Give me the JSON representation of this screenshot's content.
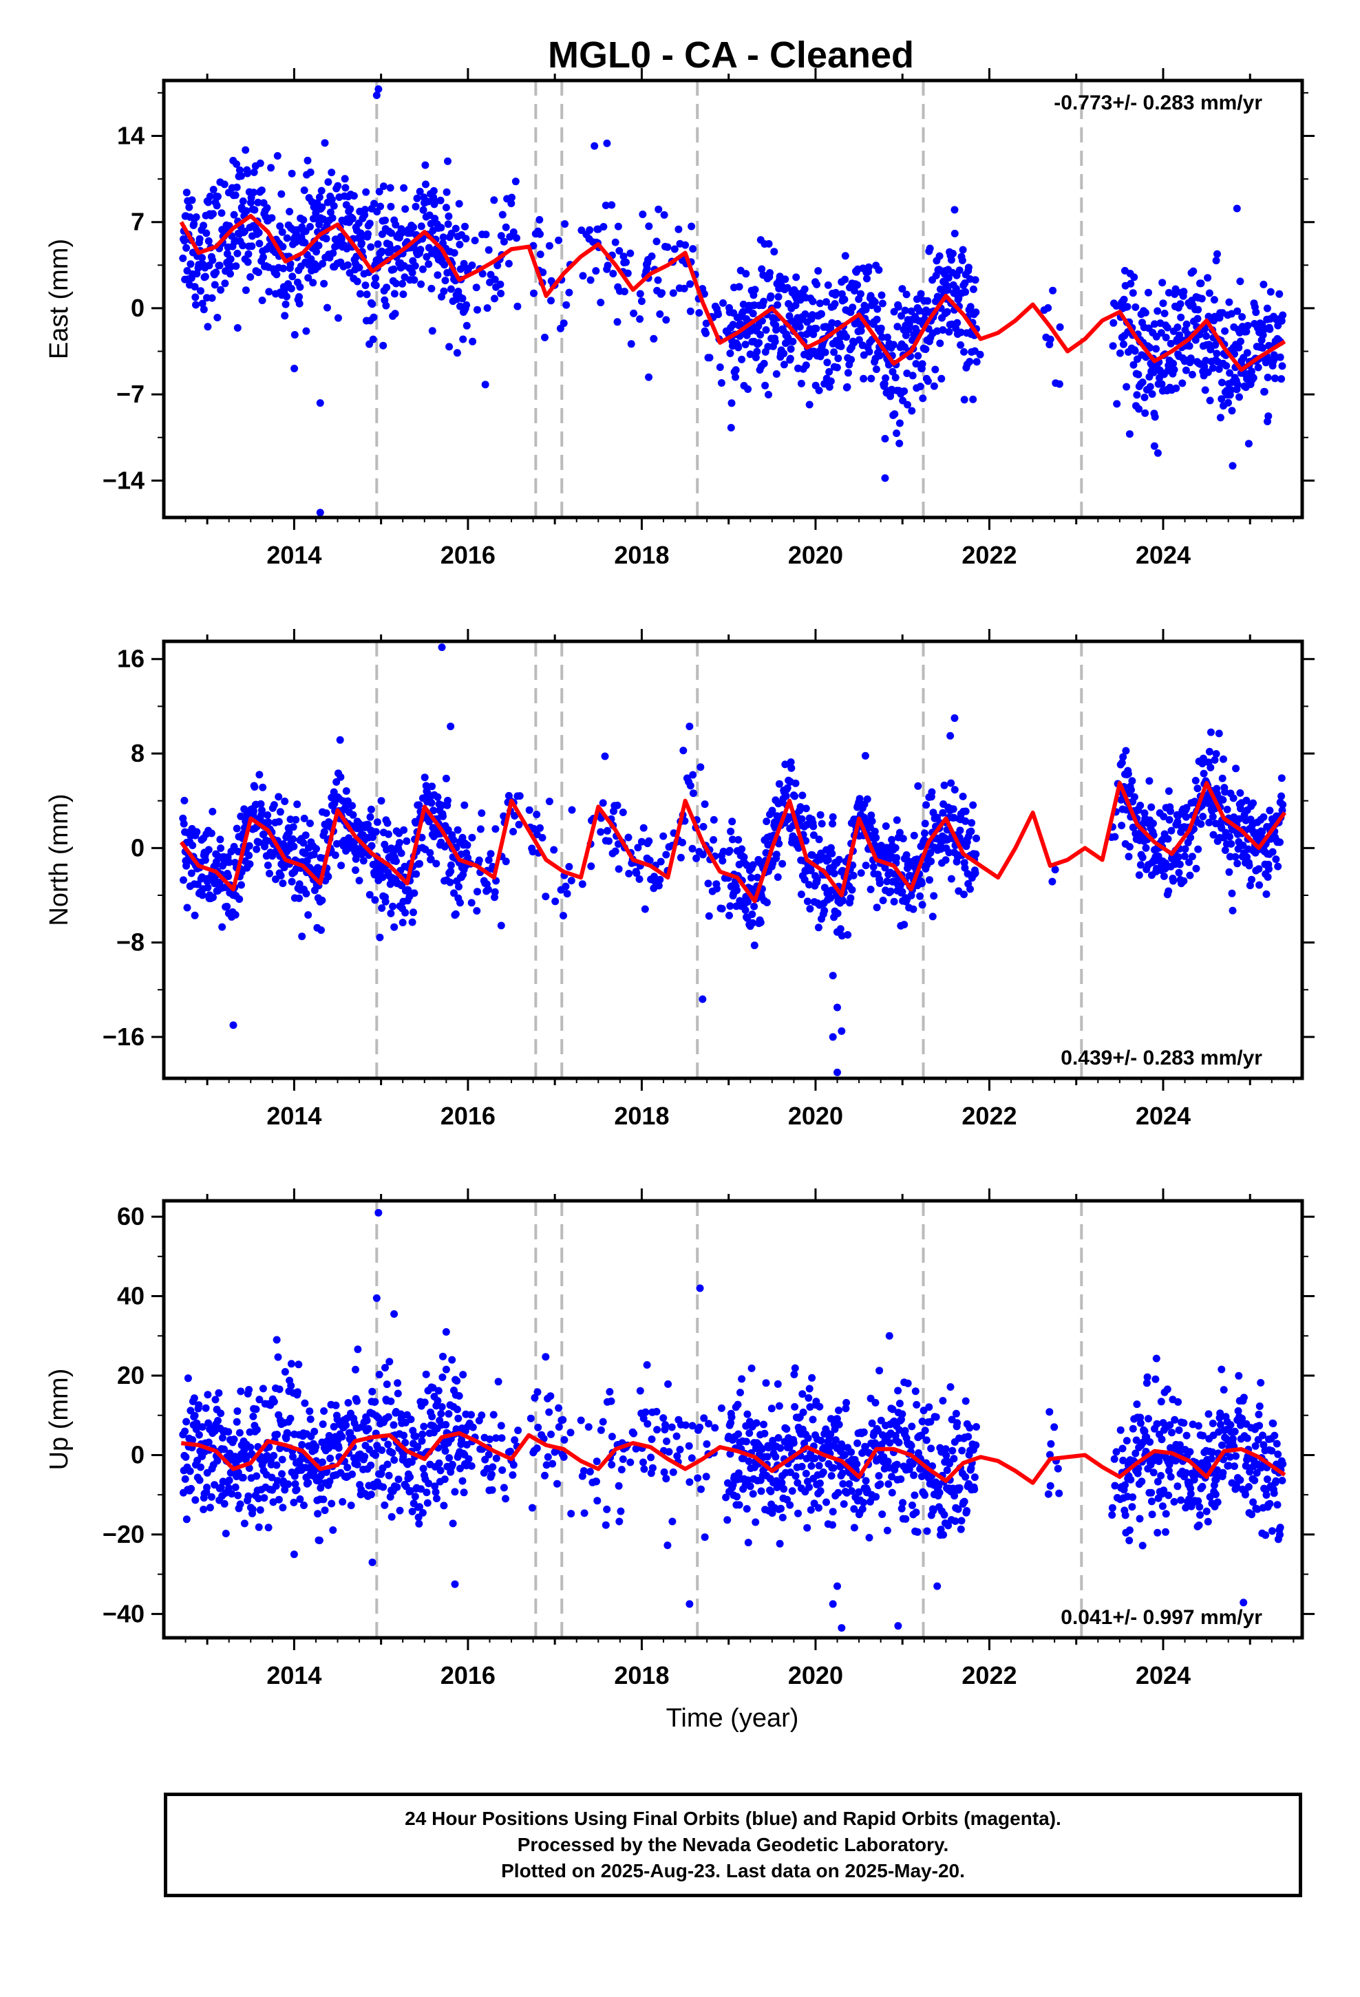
{
  "title": "MGL0  - CA - Cleaned",
  "xlabel": "Time (year)",
  "footer": {
    "line1": "24 Hour Positions Using Final Orbits (blue) and Rapid Orbits (magenta).",
    "line2": "Processed by the Nevada Geodetic Laboratory.",
    "line3": "Plotted on 2025-Aug-23. Last data on 2025-May-20."
  },
  "colors": {
    "points": "#0000ff",
    "fit": "#ff0000",
    "events": "#bbbbbb",
    "axis": "#000000"
  },
  "chart_data": [
    {
      "type": "scatter",
      "name": "east",
      "ylabel": "East (mm)",
      "xlim": [
        2012.5,
        2025.6
      ],
      "ylim": [
        -17,
        18.5
      ],
      "xticks": [
        2014,
        2016,
        2018,
        2020,
        2022,
        2024
      ],
      "yticks": [
        -14,
        -7,
        0,
        7,
        14
      ],
      "ytick_labels": [
        "−14",
        "−7",
        "0",
        "7",
        "14"
      ],
      "rate_label": "-0.773+/- 0.283 mm/yr",
      "rate_position": "top-right",
      "event_lines": [
        2014.95,
        2016.78,
        2017.08,
        2018.64,
        2021.24,
        2023.06
      ],
      "data_gaps": [
        [
          2016.6,
          2016.7
        ],
        [
          2017.2,
          2017.3
        ],
        [
          2021.9,
          2022.6
        ],
        [
          2022.85,
          2023.4
        ]
      ],
      "scatter_noise": 2.6,
      "outliers": [
        {
          "x": 2014.95,
          "y": 17.3
        },
        {
          "x": 2014.97,
          "y": 17.8
        },
        {
          "x": 2013.35,
          "y": -1.6
        },
        {
          "x": 2014.3,
          "y": -7.7
        },
        {
          "x": 2014.3,
          "y": -16.6
        },
        {
          "x": 2016.2,
          "y": -6.2
        },
        {
          "x": 2017.6,
          "y": 13.4
        },
        {
          "x": 2018.08,
          "y": -5.6
        },
        {
          "x": 2016.55,
          "y": 10.3
        },
        {
          "x": 2020.8,
          "y": -13.8
        },
        {
          "x": 2020.8,
          "y": -10.6
        },
        {
          "x": 2021.6,
          "y": 8.0
        },
        {
          "x": 2023.9,
          "y": -11.2
        },
        {
          "x": 2024.8,
          "y": -12.8
        },
        {
          "x": 2024.85,
          "y": 8.1
        },
        {
          "x": 2025.2,
          "y": -9.2
        }
      ],
      "fit": {
        "x": [
          2012.7,
          2012.9,
          2013.1,
          2013.3,
          2013.5,
          2013.7,
          2013.9,
          2014.1,
          2014.3,
          2014.5,
          2014.7,
          2014.9,
          2015.1,
          2015.3,
          2015.5,
          2015.7,
          2015.9,
          2016.1,
          2016.3,
          2016.5,
          2016.7,
          2016.9,
          2017.1,
          2017.3,
          2017.5,
          2017.7,
          2017.9,
          2018.1,
          2018.3,
          2018.5,
          2018.7,
          2018.9,
          2019.1,
          2019.3,
          2019.5,
          2019.7,
          2019.9,
          2020.1,
          2020.3,
          2020.5,
          2020.7,
          2020.9,
          2021.1,
          2021.3,
          2021.5,
          2021.7,
          2021.9,
          2022.1,
          2022.3,
          2022.5,
          2022.7,
          2022.9,
          2023.1,
          2023.3,
          2023.5,
          2023.7,
          2023.9,
          2024.1,
          2024.3,
          2024.5,
          2024.7,
          2024.9,
          2025.1,
          2025.4
        ],
        "y": [
          7.0,
          4.5,
          5.0,
          6.5,
          7.5,
          6.2,
          3.8,
          4.5,
          6.0,
          6.8,
          5.0,
          3.0,
          4.0,
          5.0,
          6.2,
          4.8,
          2.3,
          3.0,
          3.8,
          4.8,
          5.0,
          1.0,
          2.8,
          4.2,
          5.2,
          3.5,
          1.5,
          2.8,
          3.5,
          4.5,
          0.5,
          -2.8,
          -2.0,
          -1.0,
          0.0,
          -1.5,
          -3.2,
          -2.5,
          -1.5,
          -0.5,
          -2.5,
          -4.5,
          -3.5,
          -1.0,
          1.0,
          -0.5,
          -2.5,
          -2.0,
          -1.0,
          0.3,
          -1.5,
          -3.5,
          -2.5,
          -1.0,
          -0.3,
          -2.5,
          -4.3,
          -3.5,
          -2.5,
          -1.0,
          -3.2,
          -5.0,
          -4.0,
          -2.7
        ]
      }
    },
    {
      "type": "scatter",
      "name": "north",
      "ylabel": "North (mm)",
      "xlim": [
        2012.5,
        2025.6
      ],
      "ylim": [
        -19.5,
        17.5
      ],
      "xticks": [
        2014,
        2016,
        2018,
        2020,
        2022,
        2024
      ],
      "yticks": [
        -16,
        -8,
        0,
        8,
        16
      ],
      "ytick_labels": [
        "−16",
        "−8",
        "0",
        "8",
        "16"
      ],
      "rate_label": "0.439+/- 0.283 mm/yr",
      "rate_position": "bottom-right",
      "event_lines": [
        2014.95,
        2016.78,
        2017.08,
        2018.64,
        2021.24,
        2023.06
      ],
      "data_gaps": [
        [
          2016.6,
          2016.7
        ],
        [
          2017.2,
          2017.3
        ],
        [
          2021.9,
          2022.6
        ],
        [
          2022.85,
          2023.4
        ]
      ],
      "scatter_noise": 2.0,
      "outliers": [
        {
          "x": 2013.3,
          "y": -15.0
        },
        {
          "x": 2015.7,
          "y": 17.0
        },
        {
          "x": 2018.55,
          "y": 10.3
        },
        {
          "x": 2018.7,
          "y": -12.8
        },
        {
          "x": 2020.2,
          "y": -10.8
        },
        {
          "x": 2020.25,
          "y": -13.5
        },
        {
          "x": 2020.3,
          "y": -15.5
        },
        {
          "x": 2020.25,
          "y": -19.0
        },
        {
          "x": 2020.2,
          "y": -16.0
        },
        {
          "x": 2021.6,
          "y": 11.0
        },
        {
          "x": 2021.55,
          "y": 9.5
        },
        {
          "x": 2024.55,
          "y": 9.8
        },
        {
          "x": 2024.8,
          "y": -5.3
        },
        {
          "x": 2015.8,
          "y": 10.3
        }
      ],
      "fit": {
        "x": [
          2012.7,
          2012.9,
          2013.1,
          2013.3,
          2013.5,
          2013.7,
          2013.9,
          2014.1,
          2014.3,
          2014.5,
          2014.7,
          2014.9,
          2015.1,
          2015.3,
          2015.5,
          2015.7,
          2015.9,
          2016.1,
          2016.3,
          2016.5,
          2016.7,
          2016.9,
          2017.1,
          2017.3,
          2017.5,
          2017.7,
          2017.9,
          2018.1,
          2018.3,
          2018.5,
          2018.7,
          2018.9,
          2019.1,
          2019.3,
          2019.5,
          2019.7,
          2019.9,
          2020.1,
          2020.3,
          2020.5,
          2020.7,
          2020.9,
          2021.1,
          2021.3,
          2021.5,
          2021.7,
          2021.9,
          2022.1,
          2022.3,
          2022.5,
          2022.7,
          2022.9,
          2023.1,
          2023.3,
          2023.5,
          2023.7,
          2023.9,
          2024.1,
          2024.3,
          2024.5,
          2024.7,
          2024.9,
          2025.1,
          2025.4
        ],
        "y": [
          0.5,
          -1.5,
          -2.0,
          -3.5,
          2.5,
          1.5,
          -1.0,
          -1.5,
          -3.0,
          3.2,
          1.0,
          -0.5,
          -1.5,
          -3.0,
          3.5,
          1.5,
          -1.0,
          -1.5,
          -2.5,
          4.0,
          1.5,
          -1.0,
          -2.0,
          -2.5,
          3.5,
          1.5,
          -1.0,
          -1.5,
          -2.5,
          4.0,
          0.5,
          -2.0,
          -2.5,
          -4.5,
          0.0,
          4.0,
          -1.0,
          -2.0,
          -4.0,
          2.5,
          -1.0,
          -1.5,
          -3.5,
          0.5,
          2.5,
          -0.5,
          -1.5,
          -2.5,
          0.0,
          3.0,
          -1.5,
          -1.0,
          0.0,
          -1.0,
          5.5,
          2.0,
          0.5,
          -0.5,
          1.5,
          5.5,
          2.5,
          1.5,
          0.0,
          3.0
        ]
      }
    },
    {
      "type": "scatter",
      "name": "up",
      "ylabel": "Up (mm)",
      "xlabel": "Time (year)",
      "xlim": [
        2012.5,
        2025.6
      ],
      "ylim": [
        -46,
        64
      ],
      "xticks": [
        2014,
        2016,
        2018,
        2020,
        2022,
        2024
      ],
      "yticks": [
        -40,
        -20,
        0,
        20,
        40,
        60
      ],
      "ytick_labels": [
        "−40",
        "−20",
        "0",
        "20",
        "40",
        "60"
      ],
      "rate_label": "0.041+/- 0.997 mm/yr",
      "rate_position": "bottom-right",
      "event_lines": [
        2014.95,
        2016.78,
        2017.08,
        2018.64,
        2021.24,
        2023.06
      ],
      "data_gaps": [
        [
          2016.6,
          2016.7
        ],
        [
          2017.2,
          2017.3
        ],
        [
          2021.9,
          2022.6
        ],
        [
          2022.85,
          2023.4
        ]
      ],
      "scatter_noise": 8.0,
      "outliers": [
        {
          "x": 2014.97,
          "y": 61.0
        },
        {
          "x": 2014.95,
          "y": 39.5
        },
        {
          "x": 2015.15,
          "y": 35.5
        },
        {
          "x": 2014.9,
          "y": -27.0
        },
        {
          "x": 2015.85,
          "y": -32.5
        },
        {
          "x": 2014.0,
          "y": -25.0
        },
        {
          "x": 2018.67,
          "y": 42.0
        },
        {
          "x": 2018.55,
          "y": -37.5
        },
        {
          "x": 2020.2,
          "y": -37.5
        },
        {
          "x": 2020.3,
          "y": -43.5
        },
        {
          "x": 2020.25,
          "y": -33.0
        },
        {
          "x": 2020.95,
          "y": -43.0
        },
        {
          "x": 2020.85,
          "y": 30.0
        },
        {
          "x": 2021.4,
          "y": -33.0
        },
        {
          "x": 2013.8,
          "y": 29.0
        },
        {
          "x": 2015.75,
          "y": 31.0
        }
      ],
      "fit": {
        "x": [
          2012.7,
          2012.9,
          2013.1,
          2013.3,
          2013.5,
          2013.7,
          2013.9,
          2014.1,
          2014.3,
          2014.5,
          2014.7,
          2014.9,
          2015.1,
          2015.3,
          2015.5,
          2015.7,
          2015.9,
          2016.1,
          2016.3,
          2016.5,
          2016.7,
          2016.9,
          2017.1,
          2017.3,
          2017.5,
          2017.7,
          2017.9,
          2018.1,
          2018.3,
          2018.5,
          2018.7,
          2018.9,
          2019.1,
          2019.3,
          2019.5,
          2019.7,
          2019.9,
          2020.1,
          2020.3,
          2020.5,
          2020.7,
          2020.9,
          2021.1,
          2021.3,
          2021.5,
          2021.7,
          2021.9,
          2022.1,
          2022.3,
          2022.5,
          2022.7,
          2022.9,
          2023.1,
          2023.3,
          2023.5,
          2023.7,
          2023.9,
          2024.1,
          2024.3,
          2024.5,
          2024.7,
          2024.9,
          2025.1,
          2025.4
        ],
        "y": [
          3.0,
          2.5,
          1.0,
          -3.5,
          -2.0,
          3.5,
          2.5,
          1.0,
          -3.5,
          -2.5,
          3.5,
          4.5,
          5.0,
          1.0,
          -1.0,
          4.5,
          5.5,
          3.5,
          1.0,
          -1.0,
          5.0,
          2.5,
          1.5,
          -1.5,
          -3.5,
          1.5,
          3.0,
          2.0,
          -1.0,
          -3.5,
          -1.0,
          2.0,
          1.0,
          -0.5,
          -4.0,
          -1.0,
          2.0,
          0.0,
          -1.5,
          -5.5,
          1.5,
          1.5,
          0.0,
          -3.5,
          -6.5,
          -2.0,
          -0.5,
          -1.5,
          -4.0,
          -7.0,
          -1.0,
          -0.5,
          0.0,
          -3.0,
          -5.5,
          -2.0,
          1.0,
          0.5,
          -1.5,
          -5.5,
          1.0,
          1.5,
          -0.5,
          -5.0
        ]
      }
    }
  ]
}
